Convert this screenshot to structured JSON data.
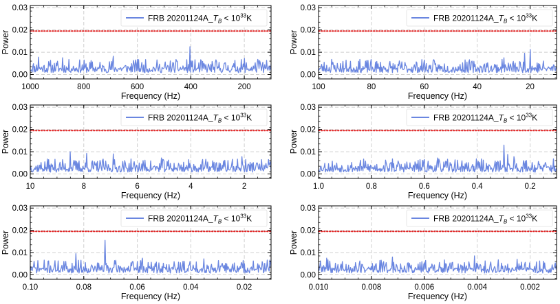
{
  "chart_data": [
    {
      "type": "line",
      "panel": "top-left",
      "title": "",
      "xlabel": "Frequency (Hz)",
      "ylabel": "Power",
      "xlim": [
        1000,
        100
      ],
      "ylim": [
        -0.002,
        0.031
      ],
      "xticks": [
        1000,
        800,
        600,
        400,
        200
      ],
      "xtick_labels": [
        "1000",
        "800",
        "600",
        "400",
        "200"
      ],
      "yticks": [
        0.0,
        0.01,
        0.02,
        0.03
      ],
      "ytick_labels": [
        "0.00",
        "0.01",
        "0.02",
        "0.03"
      ],
      "threshold": 0.0195,
      "series": [
        {
          "name": "FRB 20201124A_T_B < 10^33 K",
          "label_main": "FRB 20201124A_",
          "label_sub": "B",
          "label_base_sym": "T",
          "label_relation": " < 10",
          "label_exp": "33",
          "label_unit": "K",
          "color": "#6a86e0",
          "baseline": 0.0026,
          "noise": 0.0042,
          "n": 380,
          "seed": 11,
          "peaks": [
            [
              403,
              0.0125
            ],
            [
              970,
              0.0078
            ],
            [
              880,
              0.0075
            ],
            [
              690,
              0.0082
            ],
            [
              600,
              0.0068
            ],
            [
              200,
              0.0072
            ],
            [
              150,
              0.0068
            ]
          ]
        }
      ],
      "legend_loc": "upper right"
    },
    {
      "type": "line",
      "panel": "top-right",
      "title": "",
      "xlabel": "Frequency (Hz)",
      "ylabel": "Power",
      "xlim": [
        100,
        10
      ],
      "ylim": [
        -0.002,
        0.031
      ],
      "xticks": [
        100,
        80,
        60,
        40,
        20
      ],
      "xtick_labels": [
        "100",
        "80",
        "60",
        "40",
        "20"
      ],
      "yticks": [
        0.0,
        0.01,
        0.02,
        0.03
      ],
      "ytick_labels": [
        "0.00",
        "0.01",
        "0.02",
        "0.03"
      ],
      "threshold": 0.0195,
      "series": [
        {
          "name": "FRB 20201124A_T_B < 10^33 K",
          "label_main": "FRB 20201124A_",
          "label_sub": "B",
          "label_base_sym": "T",
          "label_relation": " < 10",
          "label_exp": "33",
          "label_unit": "K",
          "color": "#6a86e0",
          "baseline": 0.0026,
          "noise": 0.0042,
          "n": 380,
          "seed": 23,
          "peaks": [
            [
              20,
              0.0112
            ],
            [
              22,
              0.0095
            ],
            [
              30,
              0.0075
            ],
            [
              95,
              0.0068
            ],
            [
              60,
              0.0065
            ]
          ]
        }
      ],
      "legend_loc": "upper right"
    },
    {
      "type": "line",
      "panel": "middle-left",
      "title": "",
      "xlabel": "Frequency (Hz)",
      "ylabel": "Power",
      "xlim": [
        10,
        1
      ],
      "ylim": [
        -0.002,
        0.031
      ],
      "xticks": [
        10,
        8,
        6,
        4,
        2
      ],
      "xtick_labels": [
        "10",
        "8",
        "6",
        "4",
        "2"
      ],
      "yticks": [
        0.0,
        0.01,
        0.02,
        0.03
      ],
      "ytick_labels": [
        "0.00",
        "0.01",
        "0.02",
        "0.03"
      ],
      "threshold": 0.0195,
      "series": [
        {
          "name": "FRB 20201124A_T_B < 10^33 K",
          "label_main": "FRB 20201124A_",
          "label_sub": "B",
          "label_base_sym": "T",
          "label_relation": " < 10",
          "label_exp": "33",
          "label_unit": "K",
          "color": "#6a86e0",
          "baseline": 0.0026,
          "noise": 0.0042,
          "n": 380,
          "seed": 37,
          "peaks": [
            [
              8.5,
              0.01
            ],
            [
              7.9,
              0.0092
            ],
            [
              6.9,
              0.009
            ],
            [
              2.1,
              0.0078
            ],
            [
              5.1,
              0.0072
            ]
          ]
        }
      ],
      "legend_loc": "upper right"
    },
    {
      "type": "line",
      "panel": "middle-right",
      "title": "",
      "xlabel": "Frequency (Hz)",
      "ylabel": "Power",
      "xlim": [
        1.0,
        0.1
      ],
      "ylim": [
        -0.002,
        0.031
      ],
      "xticks": [
        1.0,
        0.8,
        0.6,
        0.4,
        0.2
      ],
      "xtick_labels": [
        "1.0",
        "0.8",
        "0.6",
        "0.4",
        "0.2"
      ],
      "yticks": [
        0.0,
        0.01,
        0.02,
        0.03
      ],
      "ytick_labels": [
        "0.00",
        "0.01",
        "0.02",
        "0.03"
      ],
      "threshold": 0.0195,
      "series": [
        {
          "name": "FRB 20201124A_T_B < 10^33 K",
          "label_main": "FRB 20201124A_",
          "label_sub": "B",
          "label_base_sym": "T",
          "label_relation": " < 10",
          "label_exp": "33",
          "label_unit": "K",
          "color": "#6a86e0",
          "baseline": 0.0026,
          "noise": 0.0042,
          "n": 380,
          "seed": 53,
          "peaks": [
            [
              0.3,
              0.013
            ],
            [
              0.285,
              0.0088
            ],
            [
              0.26,
              0.0078
            ],
            [
              0.55,
              0.0072
            ],
            [
              0.72,
              0.0068
            ]
          ]
        }
      ],
      "legend_loc": "upper right"
    },
    {
      "type": "line",
      "panel": "bottom-left",
      "title": "",
      "xlabel": "Frequency (Hz)",
      "ylabel": "Power",
      "xlim": [
        0.1,
        0.01
      ],
      "ylim": [
        -0.002,
        0.031
      ],
      "xticks": [
        0.1,
        0.08,
        0.06,
        0.04,
        0.02
      ],
      "xtick_labels": [
        "0.10",
        "0.08",
        "0.06",
        "0.04",
        "0.02"
      ],
      "yticks": [
        0.0,
        0.01,
        0.02,
        0.03
      ],
      "ytick_labels": [
        "0.00",
        "0.01",
        "0.02",
        "0.03"
      ],
      "threshold": 0.0195,
      "series": [
        {
          "name": "FRB 20201124A_T_B < 10^33 K",
          "label_main": "FRB 20201124A_",
          "label_sub": "B",
          "label_base_sym": "T",
          "label_relation": " < 10",
          "label_exp": "33",
          "label_unit": "K",
          "color": "#6a86e0",
          "baseline": 0.0026,
          "noise": 0.0042,
          "n": 380,
          "seed": 71,
          "peaks": [
            [
              0.072,
              0.0155
            ],
            [
              0.083,
              0.0095
            ],
            [
              0.058,
              0.0075
            ],
            [
              0.035,
              0.0072
            ]
          ]
        }
      ],
      "legend_loc": "upper right"
    },
    {
      "type": "line",
      "panel": "bottom-right",
      "title": "",
      "xlabel": "Frequency (Hz)",
      "ylabel": "Power",
      "xlim": [
        0.01,
        0.001
      ],
      "ylim": [
        -0.002,
        0.031
      ],
      "xticks": [
        0.01,
        0.008,
        0.006,
        0.004,
        0.002
      ],
      "xtick_labels": [
        "0.010",
        "0.008",
        "0.006",
        "0.004",
        "0.002"
      ],
      "yticks": [
        0.0,
        0.01,
        0.02,
        0.03
      ],
      "ytick_labels": [
        "0.00",
        "0.01",
        "0.02",
        "0.03"
      ],
      "threshold": 0.0195,
      "series": [
        {
          "name": "FRB 20201124A_T_B < 10^33 K",
          "label_main": "FRB 20201124A_",
          "label_sub": "B",
          "label_base_sym": "T",
          "label_relation": " < 10",
          "label_exp": "33",
          "label_unit": "K",
          "color": "#6a86e0",
          "baseline": 0.0026,
          "noise": 0.0042,
          "n": 380,
          "seed": 89,
          "peaks": [
            [
              0.0041,
              0.0085
            ],
            [
              0.0072,
              0.008
            ],
            [
              0.0097,
              0.0075
            ],
            [
              0.0025,
              0.007
            ]
          ]
        }
      ],
      "legend_loc": "upper right"
    }
  ],
  "style": {
    "line_color": "#6a86e0",
    "threshold_color": "#e02020",
    "grid_color": "#cfcfcf"
  }
}
